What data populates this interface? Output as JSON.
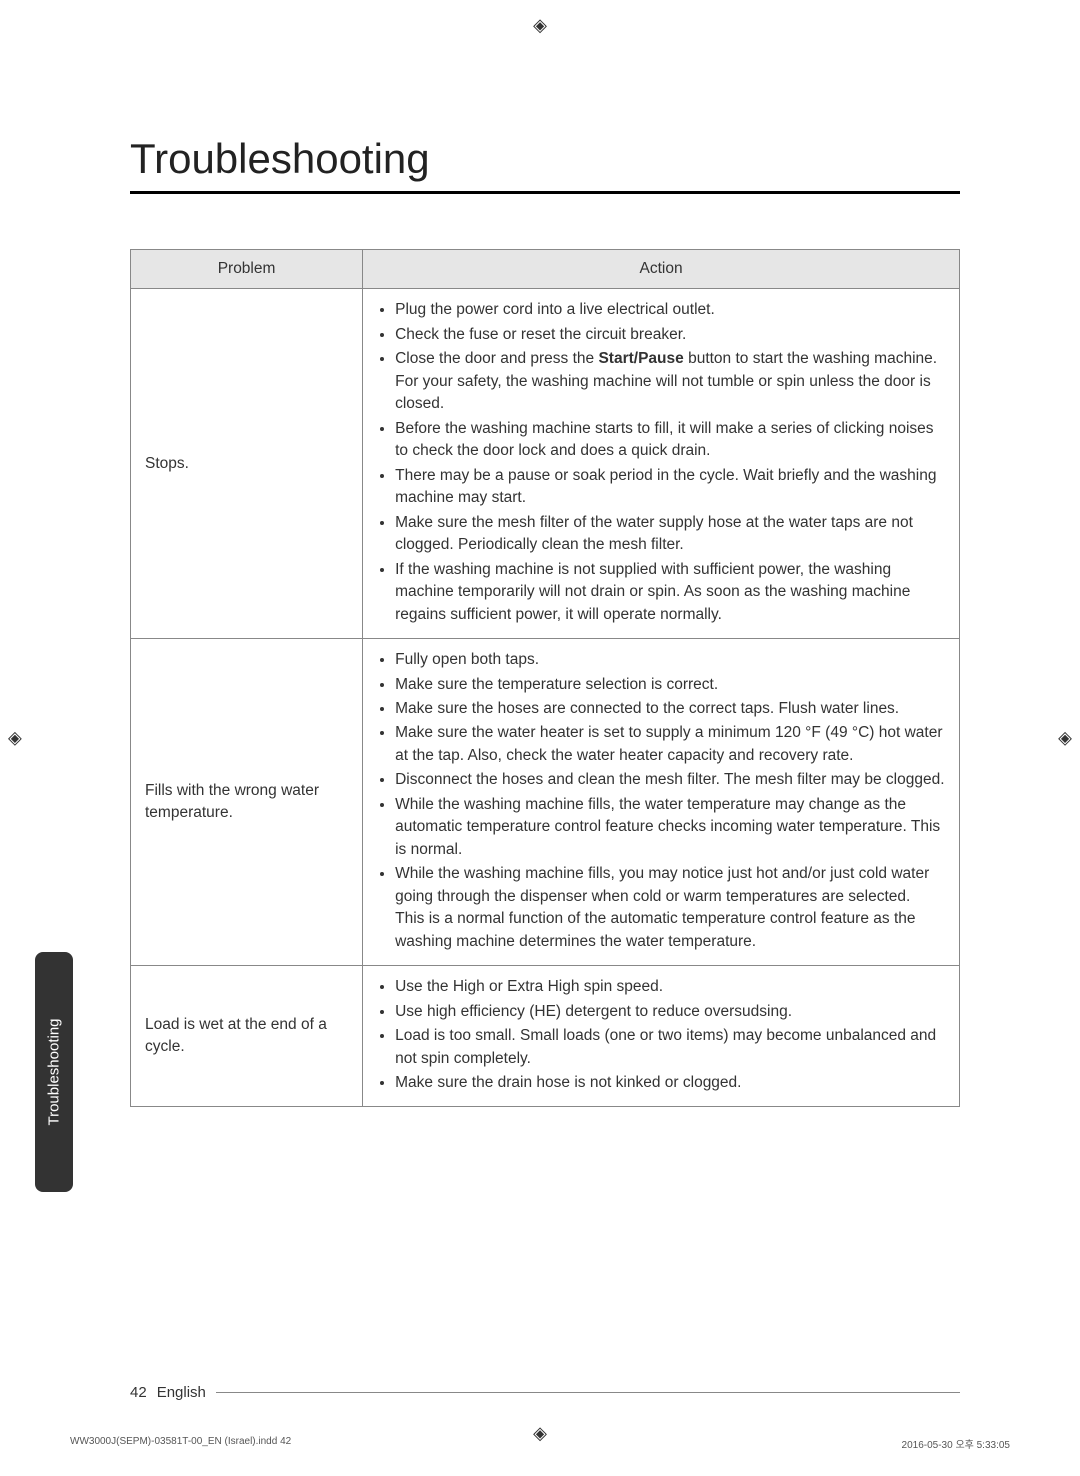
{
  "title": "Troubleshooting",
  "headers": {
    "problem": "Problem",
    "action": "Action"
  },
  "rows": [
    {
      "problem": "Stops.",
      "actions": [
        "Plug the power cord into a live electrical outlet.",
        "Check the fuse or reset the circuit breaker.",
        "Close the door and press the <b>Start/Pause</b> button to start the washing machine.<br>For your safety, the washing machine will not tumble or spin unless the door is closed.",
        "Before the washing machine starts to fill, it will make a series of clicking noises to check the door lock and does a quick drain.",
        "There may be a pause or soak period in the cycle. Wait briefly and the washing machine may start.",
        "Make sure the mesh filter of the water supply hose at the water taps are not clogged. Periodically clean the mesh filter.",
        "If the washing machine is not supplied with sufficient power, the washing machine temporarily will not drain or spin. As soon as the washing machine regains sufficient power, it will operate normally."
      ]
    },
    {
      "problem": "Fills with the wrong water temperature.",
      "actions": [
        "Fully open both taps.",
        "Make sure the temperature selection is correct.",
        "Make sure the hoses are connected to the correct taps. Flush water lines.",
        "Make sure the water heater is set to supply a minimum 120 °F (49 °C) hot water at the tap. Also, check the water heater capacity and recovery rate.",
        "Disconnect the hoses and clean the mesh filter. The mesh filter may be clogged.",
        "While the washing machine fills, the water temperature may change as the automatic temperature control feature checks incoming water temperature. This is normal.",
        "While the washing machine fills, you may notice just hot and/or just cold water going through the dispenser when cold or warm temperatures are selected.<br>This is a normal function of the automatic temperature control feature as the washing machine determines the water temperature."
      ]
    },
    {
      "problem": "Load is wet at the end of a cycle.",
      "actions": [
        "Use the High or Extra High spin speed.",
        "Use high efficiency (HE) detergent to reduce oversudsing.",
        "Load is too small. Small loads (one or two items) may become unbalanced and not spin completely.",
        "Make sure the drain hose is not kinked or clogged."
      ]
    }
  ],
  "side_tab": "Troubleshooting",
  "footer": {
    "page": "42",
    "lang": "English"
  },
  "print_footer": {
    "left": "WW3000J(SEPM)-03581T-00_EN (Israel).indd   42",
    "right": "2016-05-30   오후 5:33:05"
  }
}
